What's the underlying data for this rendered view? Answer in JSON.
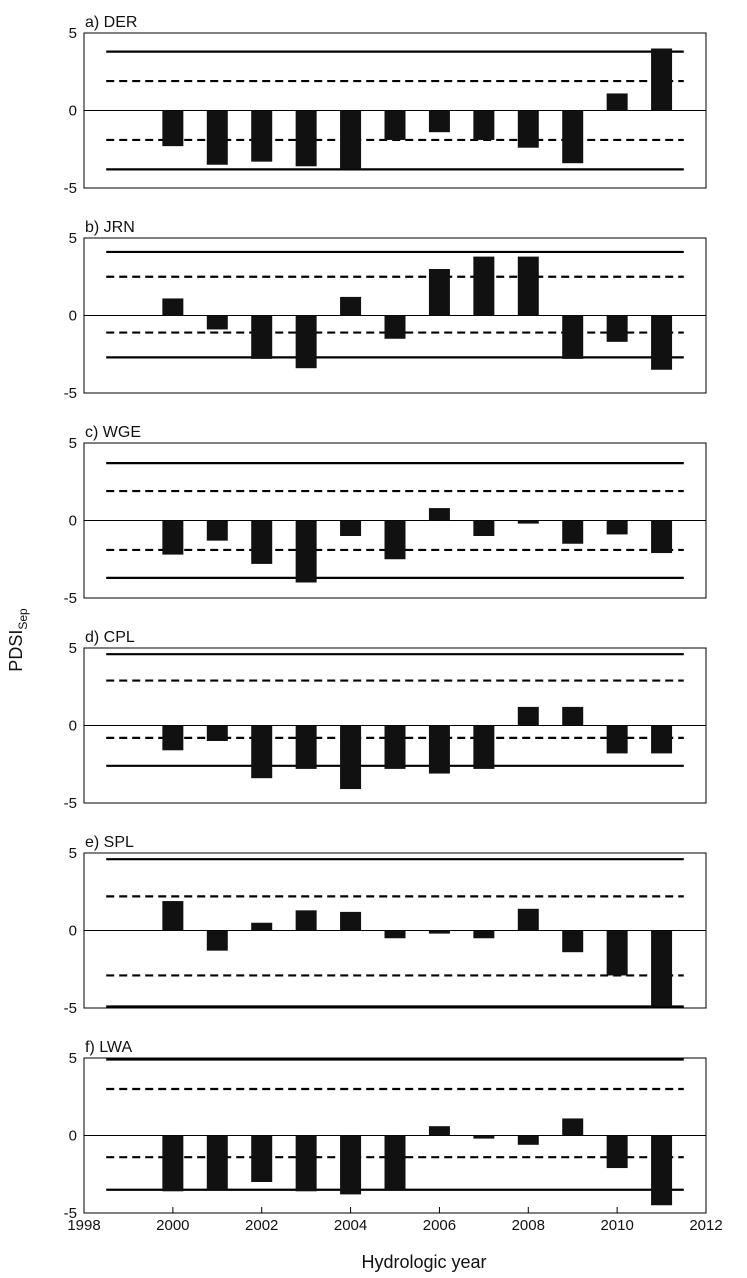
{
  "figure": {
    "xlabel": "Hydrologic year",
    "ylabel_main": "PDSI",
    "ylabel_sub": "Sep"
  },
  "chart_data": [
    {
      "type": "bar",
      "title": "a) DER",
      "x": [
        2000,
        2001,
        2002,
        2003,
        2004,
        2005,
        2006,
        2007,
        2008,
        2009,
        2010,
        2011
      ],
      "values": [
        -2.3,
        -3.5,
        -3.3,
        -3.6,
        -3.8,
        -1.9,
        -1.4,
        -1.9,
        -2.4,
        -3.4,
        1.1,
        4.0
      ],
      "xlim": [
        1998,
        2012
      ],
      "ylim": [
        -5,
        5
      ],
      "yticks": [
        -5,
        0,
        5
      ],
      "thresholds": {
        "solid": [
          3.8,
          -3.8
        ],
        "dashed": [
          1.9,
          -1.9
        ]
      }
    },
    {
      "type": "bar",
      "title": "b) JRN",
      "x": [
        2000,
        2001,
        2002,
        2003,
        2004,
        2005,
        2006,
        2007,
        2008,
        2009,
        2010,
        2011
      ],
      "values": [
        1.1,
        -0.9,
        -2.8,
        -3.4,
        1.2,
        -1.5,
        3.0,
        3.8,
        3.8,
        -2.8,
        -1.7,
        -3.5
      ],
      "xlim": [
        1998,
        2012
      ],
      "ylim": [
        -5,
        5
      ],
      "yticks": [
        -5,
        0,
        5
      ],
      "thresholds": {
        "solid": [
          4.1,
          -2.7
        ],
        "dashed": [
          2.5,
          -1.1
        ]
      }
    },
    {
      "type": "bar",
      "title": "c) WGE",
      "x": [
        2000,
        2001,
        2002,
        2003,
        2004,
        2005,
        2006,
        2007,
        2008,
        2009,
        2010,
        2011
      ],
      "values": [
        -2.2,
        -1.3,
        -2.8,
        -4.0,
        -1.0,
        -2.5,
        0.8,
        -1.0,
        -0.2,
        -1.5,
        -0.9,
        -2.1
      ],
      "xlim": [
        1998,
        2012
      ],
      "ylim": [
        -5,
        5
      ],
      "yticks": [
        -5,
        0,
        5
      ],
      "thresholds": {
        "solid": [
          3.7,
          -3.7
        ],
        "dashed": [
          1.9,
          -1.9
        ]
      }
    },
    {
      "type": "bar",
      "title": "d) CPL",
      "x": [
        2000,
        2001,
        2002,
        2003,
        2004,
        2005,
        2006,
        2007,
        2008,
        2009,
        2010,
        2011
      ],
      "values": [
        -1.6,
        -1.0,
        -3.4,
        -2.8,
        -4.1,
        -2.8,
        -3.1,
        -2.8,
        1.2,
        1.2,
        -1.8,
        -1.8
      ],
      "xlim": [
        1998,
        2012
      ],
      "ylim": [
        -5,
        5
      ],
      "yticks": [
        -5,
        0,
        5
      ],
      "thresholds": {
        "solid": [
          4.6,
          -2.6
        ],
        "dashed": [
          2.9,
          -0.8
        ]
      }
    },
    {
      "type": "bar",
      "title": "e) SPL",
      "x": [
        2000,
        2001,
        2002,
        2003,
        2004,
        2005,
        2006,
        2007,
        2008,
        2009,
        2010,
        2011
      ],
      "values": [
        1.9,
        -1.3,
        0.5,
        1.3,
        1.2,
        -0.5,
        -0.2,
        -0.5,
        1.4,
        -1.4,
        -2.9,
        -4.9
      ],
      "xlim": [
        1998,
        2012
      ],
      "ylim": [
        -5,
        5
      ],
      "yticks": [
        -5,
        0,
        5
      ],
      "thresholds": {
        "solid": [
          4.6,
          -4.9
        ],
        "dashed": [
          2.2,
          -2.9
        ]
      }
    },
    {
      "type": "bar",
      "title": "f) LWA",
      "x": [
        2000,
        2001,
        2002,
        2003,
        2004,
        2005,
        2006,
        2007,
        2008,
        2009,
        2010,
        2011
      ],
      "values": [
        -3.6,
        -3.5,
        -3.0,
        -3.6,
        -3.8,
        -3.5,
        0.6,
        -0.2,
        -0.6,
        1.1,
        -2.1,
        -4.5
      ],
      "xlim": [
        1998,
        2012
      ],
      "ylim": [
        -5,
        5
      ],
      "yticks": [
        -5,
        0,
        5
      ],
      "xticks": [
        1998,
        2000,
        2002,
        2004,
        2006,
        2008,
        2010,
        2012
      ],
      "thresholds": {
        "solid": [
          4.9,
          -3.5
        ],
        "dashed": [
          3.0,
          -1.4
        ]
      }
    }
  ]
}
